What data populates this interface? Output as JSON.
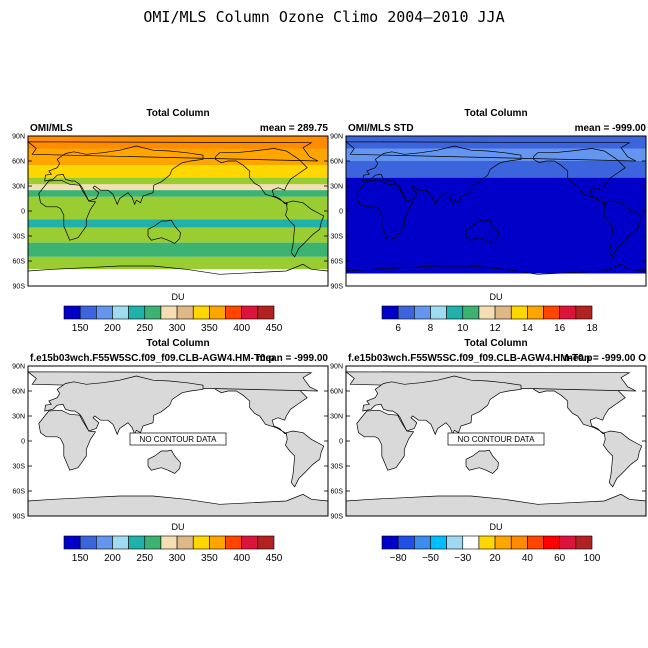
{
  "figure_title": "OMI/MLS Column Ozone Climo 2004–2010 JJA",
  "lat_labels": [
    "90N",
    "60N",
    "30N",
    "0",
    "30S",
    "60S",
    "90S"
  ],
  "colors": {
    "ozone_scale": [
      "#0000c8",
      "#3c64dc",
      "#6496f0",
      "#a0dcf0",
      "#20b2aa",
      "#3cb371",
      "#f5deb3",
      "#deb887",
      "#ffd700",
      "#ffa500",
      "#ff4500",
      "#dc143c",
      "#b22222"
    ],
    "std_scale": [
      "#0000c8",
      "#3c64dc",
      "#6496f0",
      "#a0dcf0",
      "#20b2aa",
      "#3cb371",
      "#f5deb3",
      "#deb887",
      "#ffd700",
      "#ffa500",
      "#ff4500",
      "#dc143c",
      "#b22222"
    ],
    "diff_scale": [
      "#0000c8",
      "#1e50e6",
      "#3c8cf0",
      "#00bfff",
      "#a0d8f0",
      "#ffffff",
      "#ffd700",
      "#ffa500",
      "#ff8c00",
      "#ff4500",
      "#ff0000",
      "#dc143c",
      "#b22222"
    ],
    "land": "#d9d9d9"
  },
  "chart_data": [
    {
      "type": "heatmap",
      "title": "Total Column",
      "left_label": "OMI/MLS",
      "right_label": "mean = 289.75",
      "colorbar_label": "DU",
      "colorbar_ticks": [
        "150",
        "200",
        "250",
        "300",
        "350",
        "400",
        "450"
      ],
      "ylim": [
        -90,
        90
      ],
      "bands": [
        {
          "lat_top": 90,
          "lat_bottom": 75,
          "color": "#ff8c00"
        },
        {
          "lat_top": 75,
          "lat_bottom": 55,
          "color": "#ffa500"
        },
        {
          "lat_top": 55,
          "lat_bottom": 40,
          "color": "#ffd700"
        },
        {
          "lat_top": 40,
          "lat_bottom": 32,
          "color": "#9acd32"
        },
        {
          "lat_top": 32,
          "lat_bottom": 25,
          "color": "#f5deb3"
        },
        {
          "lat_top": 25,
          "lat_bottom": 17,
          "color": "#3cb371"
        },
        {
          "lat_top": 17,
          "lat_bottom": -10,
          "color": "#9acd32"
        },
        {
          "lat_top": -10,
          "lat_bottom": -20,
          "color": "#20b2aa"
        },
        {
          "lat_top": -20,
          "lat_bottom": -38,
          "color": "#9acd32"
        },
        {
          "lat_top": -38,
          "lat_bottom": -55,
          "color": "#3cb371"
        },
        {
          "lat_top": -55,
          "lat_bottom": -70,
          "color": "#9acd32"
        },
        {
          "lat_top": -70,
          "lat_bottom": -90,
          "color": "#ffffff"
        }
      ]
    },
    {
      "type": "heatmap",
      "title": "Total Column",
      "left_label": "OMI/MLS STD",
      "right_label": "mean = -999.00",
      "colorbar_label": "DU",
      "colorbar_ticks": [
        "6",
        "8",
        "10",
        "12",
        "14",
        "16",
        "18"
      ],
      "ylim": [
        -90,
        90
      ],
      "bands": [
        {
          "lat_top": 90,
          "lat_bottom": 75,
          "color": "#3c64dc"
        },
        {
          "lat_top": 75,
          "lat_bottom": 60,
          "color": "#6496f0"
        },
        {
          "lat_top": 60,
          "lat_bottom": 40,
          "color": "#3c64dc"
        },
        {
          "lat_top": 40,
          "lat_bottom": -75,
          "color": "#0000c8"
        },
        {
          "lat_top": -75,
          "lat_bottom": -90,
          "color": "#ffffff"
        }
      ]
    },
    {
      "type": "heatmap",
      "title": "Total Column",
      "left_label": "f.e15b03wch.F55W5SC.f09_f09.CLB-AGW4.HM-T0.p",
      "right_label": "mean = -999.00",
      "annotation": "NO CONTOUR DATA",
      "colorbar_label": "DU",
      "colorbar_ticks": [
        "150",
        "200",
        "250",
        "300",
        "350",
        "400",
        "450"
      ],
      "ylim": [
        -90,
        90
      ],
      "bands": []
    },
    {
      "type": "heatmap",
      "title": "Total Column",
      "left_label": "f.e15b03wch.F55W5SC.f09_f09.CLB-AGW4.HM-T0.p",
      "right_label": "mean = -999.00 O",
      "annotation": "NO CONTOUR DATA",
      "colorbar_label": "DU",
      "colorbar_ticks": [
        "−80",
        "−50",
        "−30",
        "20",
        "40",
        "60",
        "100"
      ],
      "ylim": [
        -90,
        90
      ],
      "bands": []
    }
  ]
}
